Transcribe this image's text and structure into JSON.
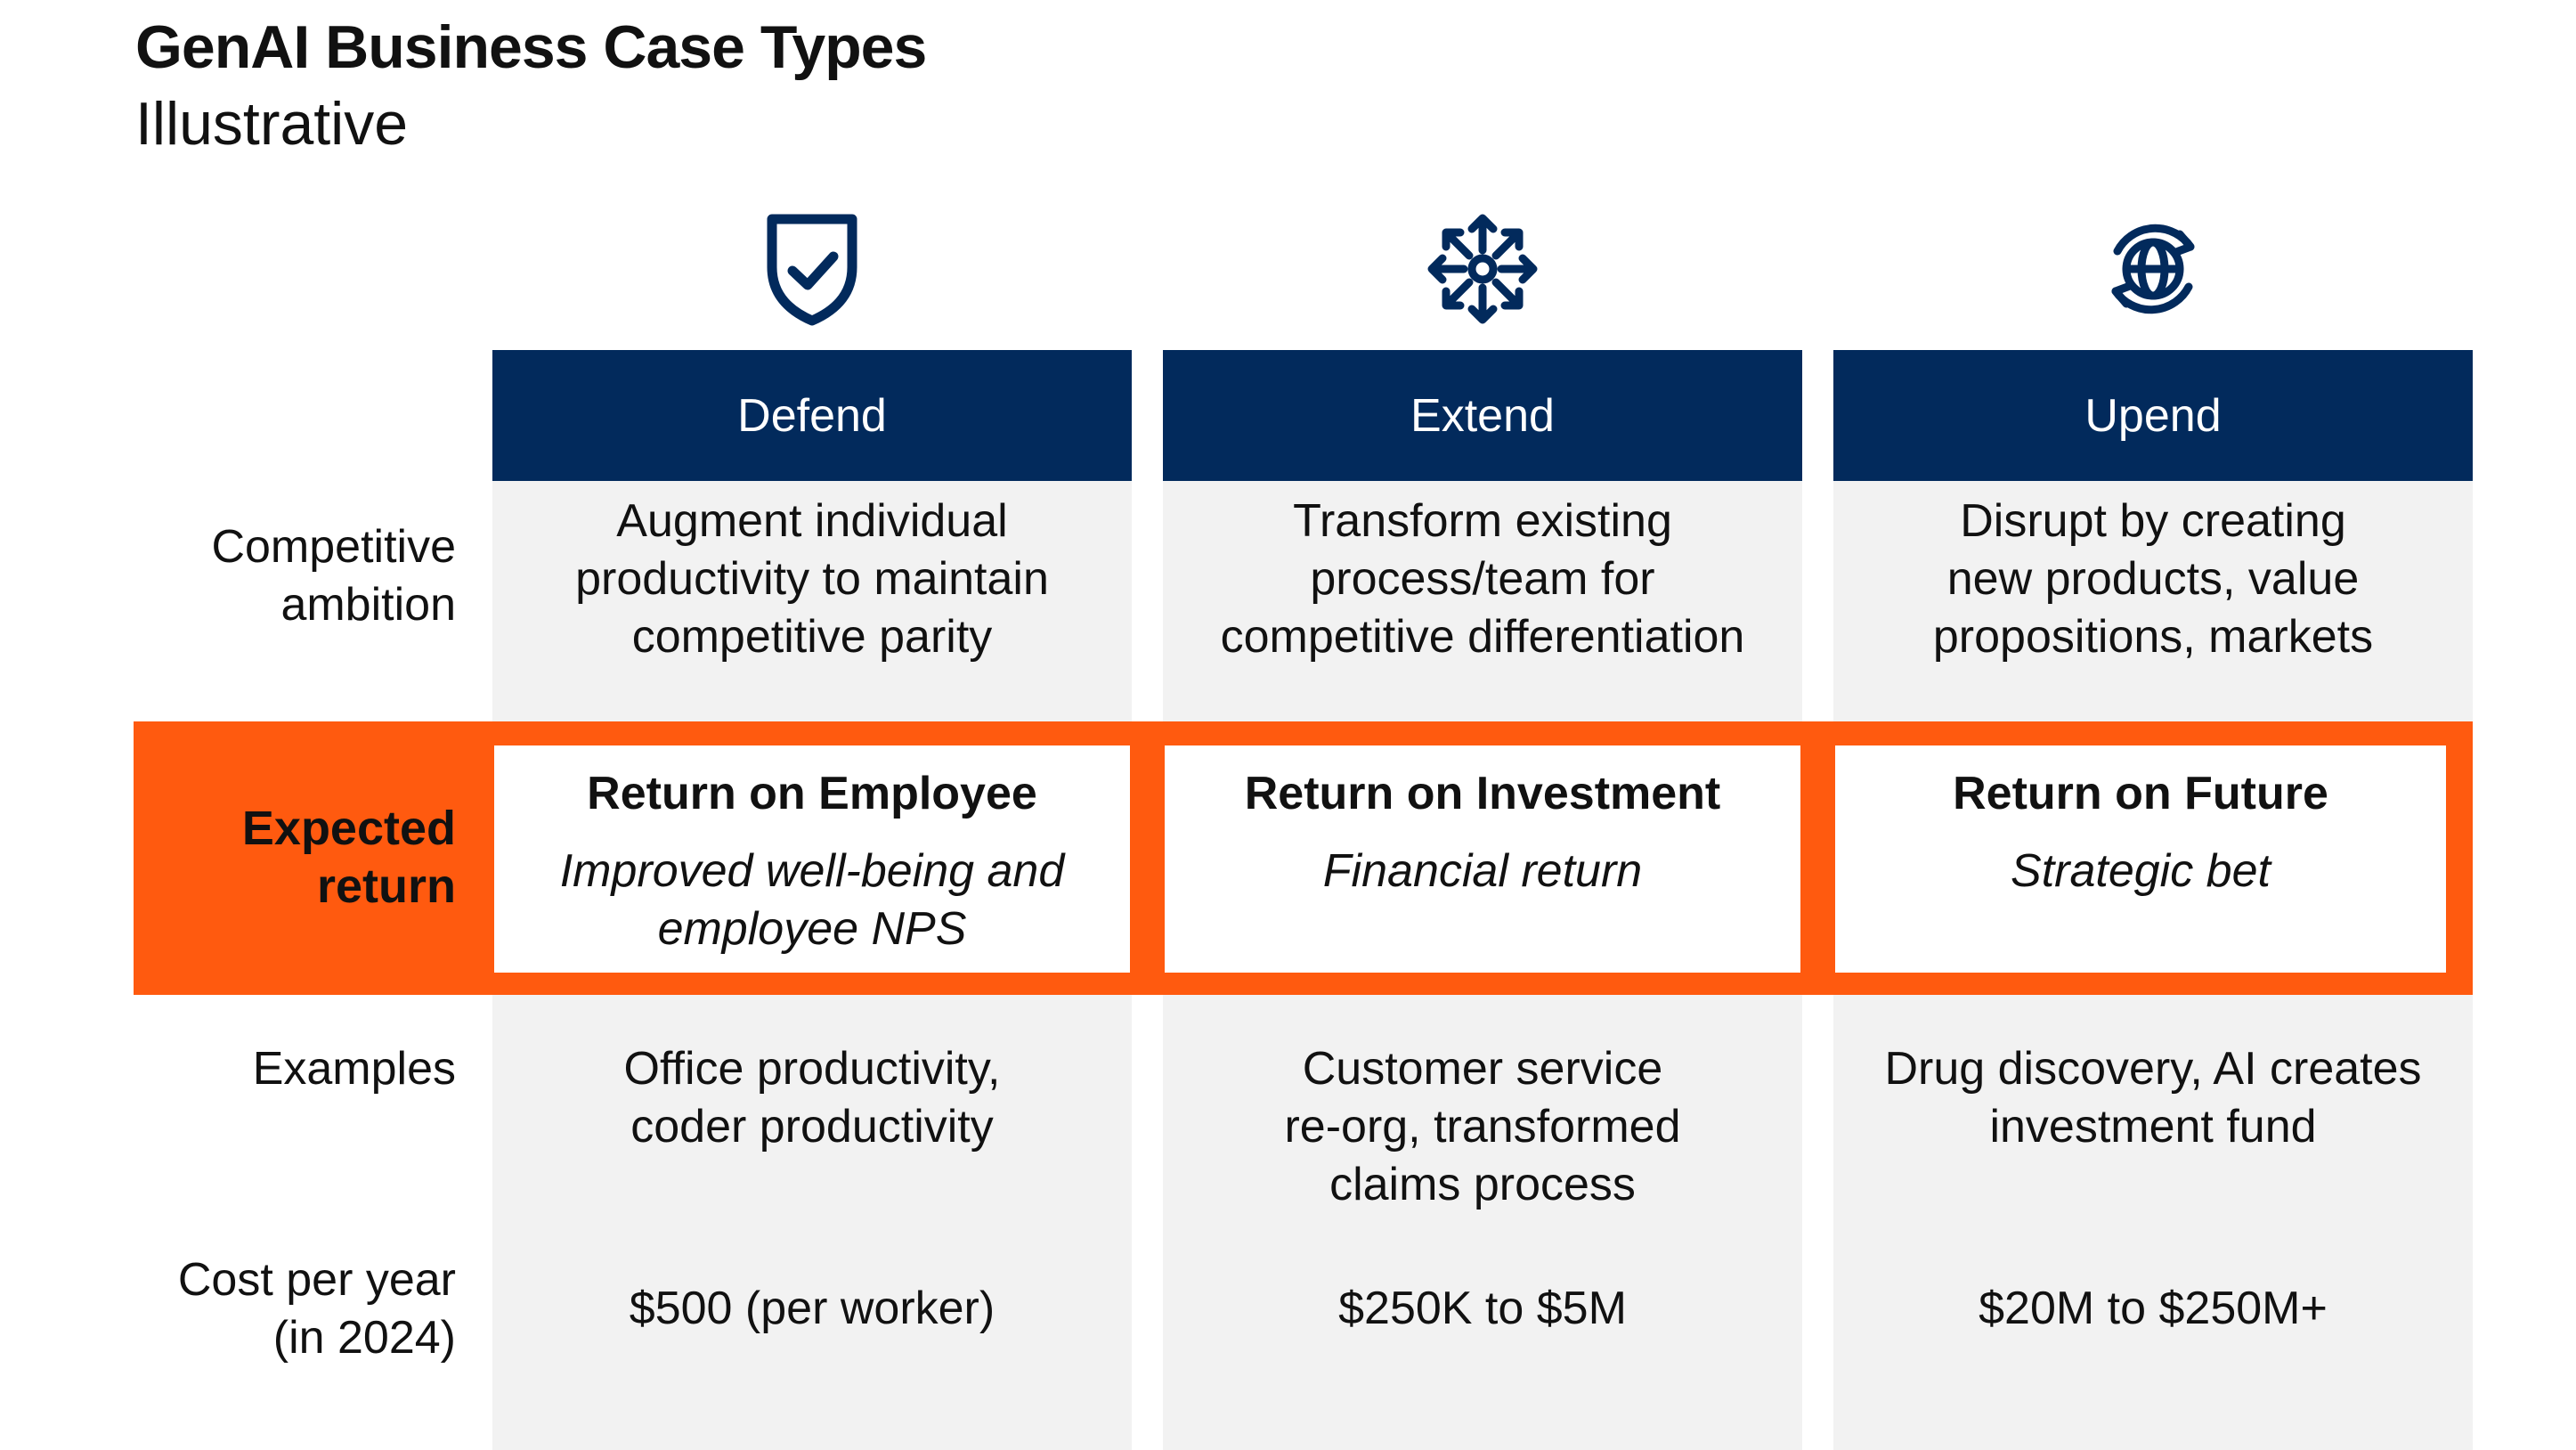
{
  "title": "GenAI Business Case Types",
  "subtitle": "Illustrative",
  "row_labels": {
    "ambition": [
      "Competitive",
      "ambition"
    ],
    "expected_return": [
      "Expected",
      "return"
    ],
    "examples": [
      "Examples"
    ],
    "cost": [
      "Cost per year",
      "(in 2024)"
    ]
  },
  "columns": [
    {
      "icon": "shield-check-icon",
      "header": "Defend",
      "ambition": [
        "Augment individual",
        "productivity to maintain",
        "competitive parity"
      ],
      "return_title": "Return on Employee",
      "return_sub": [
        "Improved well-being and",
        "employee NPS"
      ],
      "examples": [
        "Office productivity,",
        "coder productivity"
      ],
      "cost": "$500 (per worker)"
    },
    {
      "icon": "expand-arrows-icon",
      "header": "Extend",
      "ambition": [
        "Transform existing",
        "process/team for",
        "competitive differentiation"
      ],
      "return_title": "Return on Investment",
      "return_sub": [
        "Financial return"
      ],
      "examples": [
        "Customer service",
        "re-org, transformed",
        "claims process"
      ],
      "cost": "$250K to $5M"
    },
    {
      "icon": "globe-rotate-icon",
      "header": "Upend",
      "ambition": [
        "Disrupt by creating",
        "new products, value",
        "propositions, markets"
      ],
      "return_title": "Return on Future",
      "return_sub": [
        "Strategic bet"
      ],
      "examples": [
        "Drug discovery, AI creates",
        "investment fund"
      ],
      "cost": "$20M to $250M+"
    }
  ],
  "colors": {
    "navy": "#022a5c",
    "orange": "#ff5a0f",
    "panel": "#f2f2f2"
  }
}
